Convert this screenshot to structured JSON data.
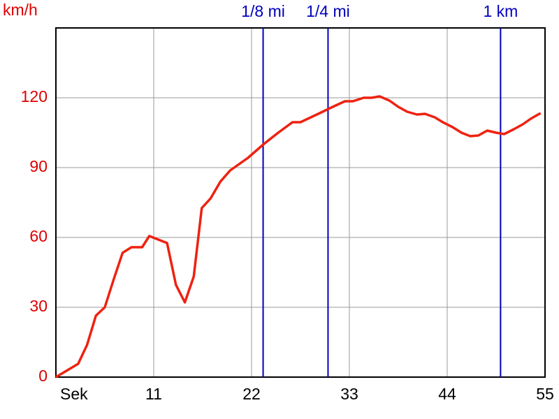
{
  "chart_data": {
    "type": "line",
    "y_label": "km/h",
    "x": [
      0,
      2.5,
      3.5,
      4.5,
      5.5,
      6.5,
      7.5,
      8.5,
      9.7,
      10.5,
      12.5,
      13.5,
      14.5,
      15.5,
      16.4,
      17.4,
      18.5,
      19.6,
      21.6,
      23.4,
      25,
      26.6,
      27.5,
      29.5,
      31.3,
      32.5,
      33.4,
      34.6,
      35.5,
      36.4,
      37.5,
      38.5,
      39.5,
      40.6,
      41.5,
      42.6,
      43.5,
      44.6,
      45.6,
      46.6,
      47.5,
      48.5,
      49.5,
      50.4,
      51.5,
      52.5,
      53.4,
      54.5
    ],
    "values": [
      0,
      5.7,
      13.8,
      26.4,
      30,
      42,
      53.4,
      55.8,
      55.8,
      60.6,
      57.6,
      39.6,
      32.1,
      43.2,
      72.6,
      76.8,
      84,
      88.8,
      94.2,
      100.2,
      105,
      109.5,
      109.5,
      113.1,
      116.4,
      118.5,
      118.5,
      120,
      120,
      120.6,
      118.8,
      116.1,
      114,
      112.8,
      113.1,
      111.6,
      109.5,
      107.4,
      105,
      103.5,
      103.8,
      105.9,
      105,
      104.4,
      106.5,
      108.6,
      111,
      113.4
    ],
    "color": "#ee2211",
    "xlim": [
      0,
      55
    ],
    "ylim": [
      0,
      150
    ],
    "xticks": [
      {
        "value": 0,
        "label": "Sek"
      },
      11,
      22,
      33,
      44,
      55
    ],
    "yticks": [
      0,
      30,
      60,
      90,
      120
    ],
    "grid": true,
    "markers": [
      {
        "label": "1/8 mi",
        "x": 23.3,
        "color": "#0000bb"
      },
      {
        "label": "1/4 mi",
        "x": 30.6,
        "color": "#0000bb"
      },
      {
        "label": "1 km",
        "x": 50,
        "color": "#0000bb"
      }
    ]
  }
}
